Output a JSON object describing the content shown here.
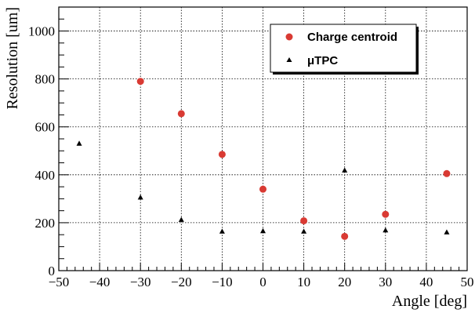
{
  "chart_data": {
    "type": "scatter",
    "xlabel": "Angle [deg]",
    "ylabel": "Resolution [um]",
    "xlim": [
      -50,
      50
    ],
    "ylim": [
      0,
      1100
    ],
    "xticks": [
      -50,
      -40,
      -30,
      -20,
      -10,
      0,
      10,
      20,
      30,
      40,
      50
    ],
    "xtick_labels": [
      "−50",
      "−40",
      "−30",
      "−20",
      "−10",
      "0",
      "10",
      "20",
      "30",
      "40",
      "50"
    ],
    "yticks": [
      0,
      200,
      400,
      600,
      800,
      1000
    ],
    "ytick_labels": [
      "0",
      "200",
      "400",
      "600",
      "800",
      "1000"
    ],
    "grid": true,
    "legend_position": "top-right",
    "series": [
      {
        "name": "Charge centroid",
        "marker": "circle",
        "color": "#d93a33",
        "x": [
          -30,
          -20,
          -10,
          0,
          10,
          20,
          30,
          45
        ],
        "y": [
          790,
          655,
          485,
          340,
          208,
          143,
          235,
          405
        ]
      },
      {
        "name": "μTPC",
        "marker": "triangle",
        "color": "#000000",
        "x": [
          -45,
          -30,
          -20,
          -10,
          0,
          10,
          20,
          30,
          45
        ],
        "y": [
          530,
          305,
          212,
          163,
          165,
          163,
          418,
          168,
          160
        ]
      }
    ]
  }
}
